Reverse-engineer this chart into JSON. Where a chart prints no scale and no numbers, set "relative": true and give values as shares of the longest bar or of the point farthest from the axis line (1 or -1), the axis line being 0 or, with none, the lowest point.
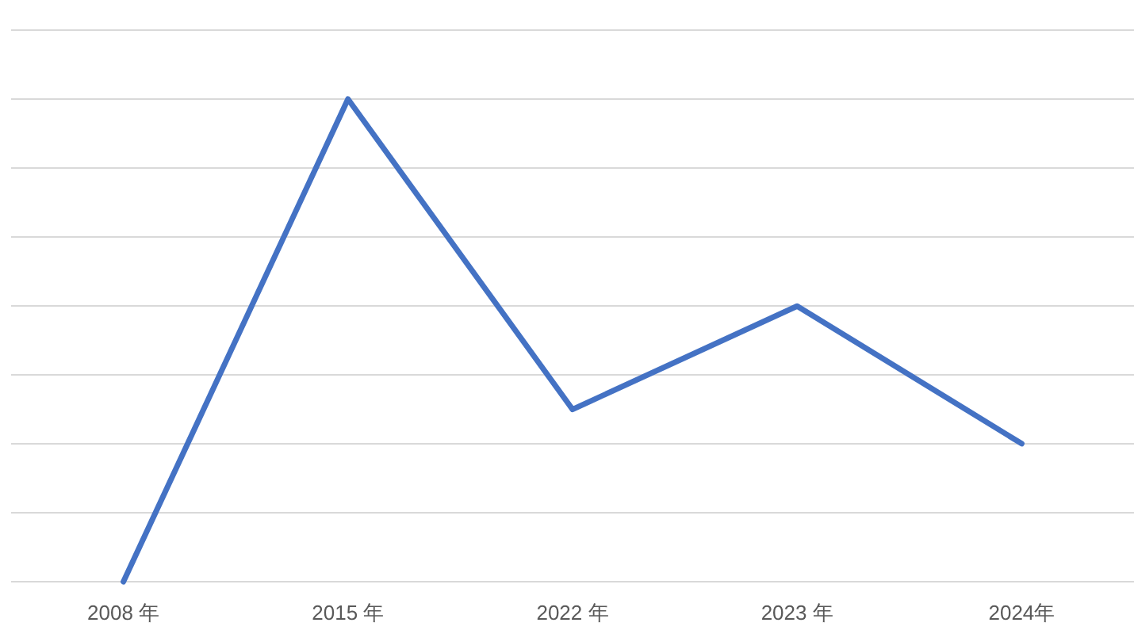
{
  "chart_data": {
    "type": "line",
    "relative": true,
    "grid": "y",
    "marker": "none",
    "line_style": "solid",
    "categories": [
      "2008 年",
      "2015 年",
      "2022 年",
      "2023 年",
      "2024年"
    ],
    "series": [
      {
        "color": "#4472c4",
        "values": [
          0,
          1,
          0.357,
          0.571,
          0.286
        ]
      }
    ]
  }
}
